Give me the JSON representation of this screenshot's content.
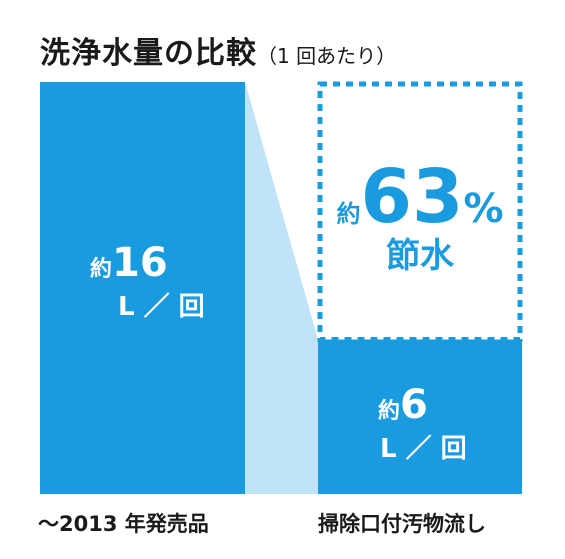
{
  "title": "洗浄水量の比較",
  "subtitle": "（1 回あたり）",
  "colors": {
    "bar": "#1a9be0",
    "connector": "#bfe3f7",
    "dashed": "#1a9be0",
    "text": "#1a1a1a"
  },
  "chart_data": {
    "type": "bar",
    "title": "洗浄水量の比較",
    "subtitle": "（1 回あたり）",
    "categories": [
      "〜2013 年発売品",
      "掃除口付汚物流し"
    ],
    "values": [
      16,
      6
    ],
    "unit": "L ／ 回",
    "value_prefix": "約",
    "ylim": [
      0,
      16
    ],
    "savings": {
      "prefix": "約",
      "value": 63,
      "unit": "%",
      "word": "節水"
    },
    "labels": [
      {
        "prefix": "約",
        "value": "16",
        "unit": "L ／ 回"
      },
      {
        "prefix": "約",
        "value": "6",
        "unit": "L ／ 回"
      }
    ]
  }
}
